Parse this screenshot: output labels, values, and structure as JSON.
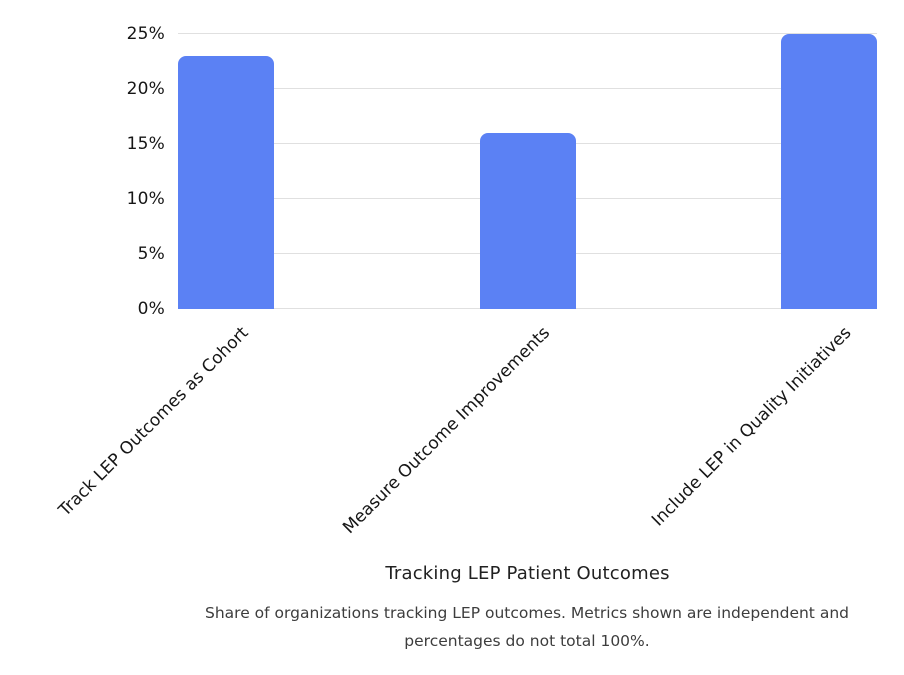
{
  "chart_data": {
    "type": "bar",
    "categories": [
      "Track LEP Outcomes as Cohort",
      "Measure Outcome Improvements",
      "Include LEP in Quality Initiatives"
    ],
    "values": [
      23,
      16,
      25
    ],
    "title": "",
    "xlabel": "Tracking LEP Patient Outcomes",
    "ylabel": "",
    "ylim": [
      0,
      25
    ],
    "yticks": [
      0,
      5,
      10,
      15,
      20,
      25
    ],
    "ytick_suffix": "%",
    "grid": true,
    "legend": "none",
    "bar_color": "#5B81F4",
    "gridline_color": "#e0e0e0",
    "caption": "Share of organizations tracking LEP outcomes. Metrics shown are independent and percentages do not total 100%."
  },
  "caption": {
    "line1": "Share of organizations tracking LEP outcomes. Metrics shown are independent and",
    "line2": "percentages do not total 100%."
  }
}
